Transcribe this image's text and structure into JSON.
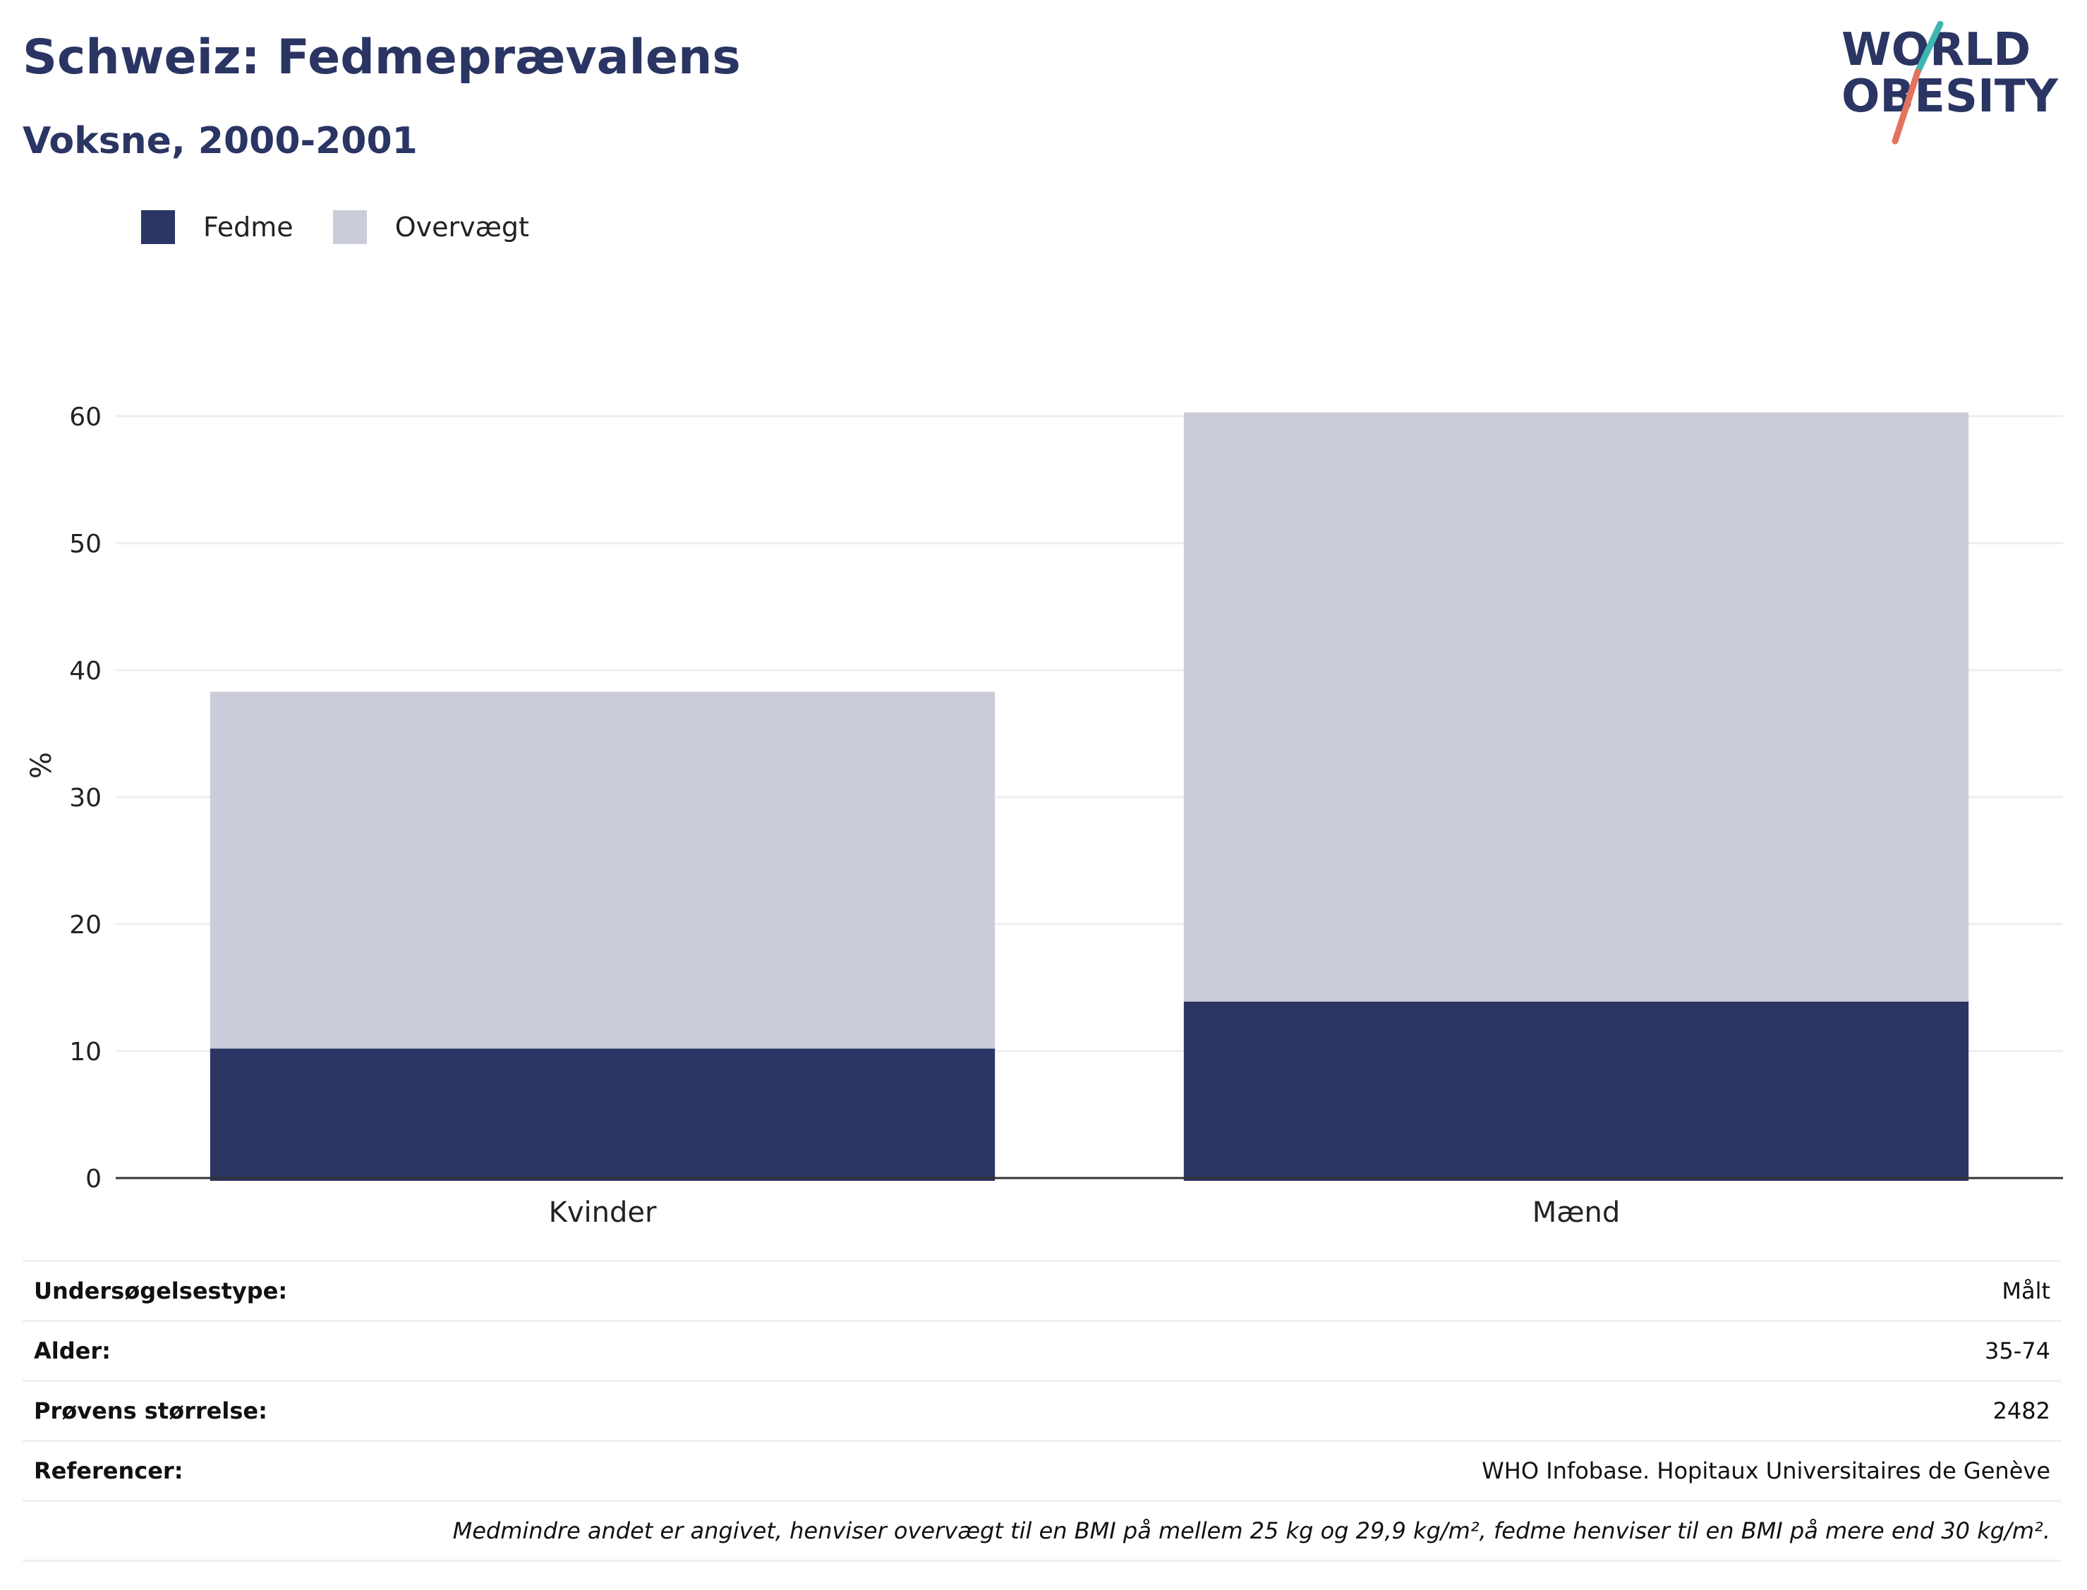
{
  "header": {
    "title": "Schweiz: Fedmeprævalens",
    "subtitle": "Voksne, 2000-2001"
  },
  "logo": {
    "line1": "WORLD",
    "line2": "OBESITY",
    "colors": {
      "text": "#2a3563",
      "slash_top": "#3fb6b2",
      "slash_bottom": "#e4725e"
    }
  },
  "legend": [
    {
      "label": "Fedme",
      "color": "#2a3563"
    },
    {
      "label": "Overvægt",
      "color": "#cacdd9"
    }
  ],
  "chart_data": {
    "type": "bar",
    "stacked": true,
    "categories": [
      "Kvinder",
      "Mænd"
    ],
    "series": [
      {
        "name": "Fedme",
        "color": "#2a3563",
        "values": [
          10.2,
          13.9
        ]
      },
      {
        "name": "Overvægt",
        "color": "#cacdd9",
        "values": [
          28.1,
          46.4
        ]
      }
    ],
    "ylabel": "%",
    "xlabel": "",
    "ylim": [
      0,
      65
    ],
    "yticks": [
      0,
      10,
      20,
      30,
      40,
      50,
      60
    ],
    "grid": true
  },
  "info": {
    "rows": [
      {
        "key": "Undersøgelsestype:",
        "value": "Målt"
      },
      {
        "key": "Alder:",
        "value": "35-74"
      },
      {
        "key": "Prøvens størrelse:",
        "value": "2482"
      },
      {
        "key": "Referencer:",
        "value": "WHO Infobase. Hopitaux Universitaires de Genève"
      }
    ],
    "note": "Medmindre andet er angivet, henviser overvægt til en BMI på mellem 25 kg og 29,9 kg/m², fedme henviser til en BMI på mere end 30 kg/m²."
  }
}
